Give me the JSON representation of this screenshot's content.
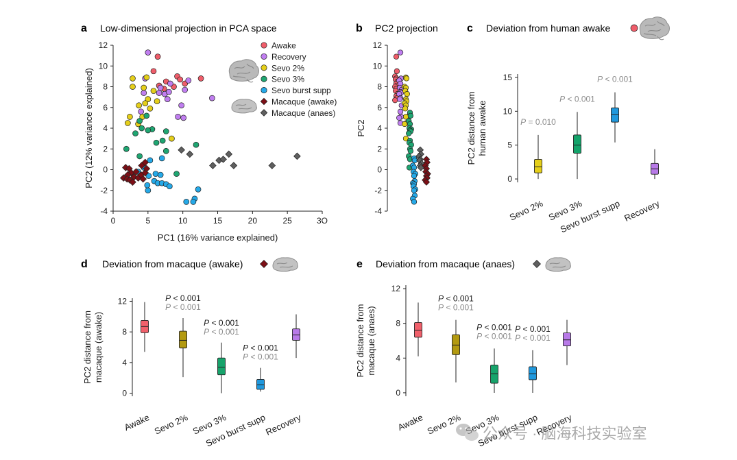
{
  "colors": {
    "awake": "#ef5d6a",
    "recovery": "#c07ef0",
    "sevo2": "#e5cf1a",
    "sevo3": "#1fa672",
    "burst": "#25a9e8",
    "mac_awake": "#7d0f16",
    "mac_anaes": "#5f5f5f",
    "p_gray": "#8a8a8a",
    "box_awake_d": "#f0606b",
    "box_sevo2_d": "#b39a10",
    "box_sevo3_d": "#17a36b",
    "box_burst_d": "#1f98dd",
    "box_recovery_d": "#b87ae8",
    "box_sevo2_c": "#e5cf1a",
    "box_sevo3_c": "#14a36a",
    "box_burst_c": "#1f98dd",
    "box_recovery_c": "#b87ae8"
  },
  "icons": {
    "human_brain": "human-brain-icon",
    "macaque_brain": "macaque-brain-icon"
  },
  "watermark": "公众号 · 脑海科技实验室",
  "chart_data": [
    {
      "panel": "a",
      "type": "scatter",
      "title": "Low-dimensional projection in PCA space",
      "xlabel": "PC1 (16% variance explained)",
      "ylabel": "PC2 (12% variance explained)",
      "xlim": [
        0,
        30
      ],
      "ylim": [
        -4,
        12
      ],
      "xticks": [
        "0",
        "5",
        "10",
        "15",
        "20",
        "25",
        "3O"
      ],
      "yticks": [
        "-4",
        "-2",
        "0",
        "2",
        "4",
        "6",
        "8",
        "10",
        "12"
      ],
      "legend": [
        {
          "label": "Awake",
          "color_key": "awake",
          "shape": "circle"
        },
        {
          "label": "Recovery",
          "color_key": "recovery",
          "shape": "circle"
        },
        {
          "label": "Sevo 2%",
          "color_key": "sevo2",
          "shape": "circle"
        },
        {
          "label": "Sevo 3%",
          "color_key": "sevo3",
          "shape": "circle"
        },
        {
          "label": "Sevo burst supp",
          "color_key": "burst",
          "shape": "circle"
        },
        {
          "label": "Macaque (awake)",
          "color_key": "mac_awake",
          "shape": "diamond"
        },
        {
          "label": "Macaque (anaes)",
          "color_key": "mac_anaes",
          "shape": "diamond"
        }
      ],
      "series": [
        {
          "name": "Awake",
          "color_key": "awake",
          "shape": "circle",
          "points": [
            [
              6.4,
              10.9
            ],
            [
              5.8,
              9.5
            ],
            [
              9.2,
              9.0
            ],
            [
              9.6,
              8.7
            ],
            [
              12.6,
              8.8
            ],
            [
              7.6,
              8.5
            ],
            [
              6.6,
              8.1
            ],
            [
              8.7,
              8.0
            ],
            [
              10.3,
              8.3
            ],
            [
              7.3,
              7.8
            ]
          ]
        },
        {
          "name": "Recovery",
          "color_key": "recovery",
          "shape": "circle",
          "points": [
            [
              5.0,
              11.3
            ],
            [
              4.6,
              8.8
            ],
            [
              8.2,
              8.3
            ],
            [
              6.8,
              7.9
            ],
            [
              10.8,
              8.6
            ],
            [
              10.3,
              7.7
            ],
            [
              6.6,
              7.4
            ],
            [
              7.4,
              7.3
            ],
            [
              8.0,
              7.5
            ],
            [
              7.8,
              6.8
            ],
            [
              4.4,
              7.4
            ],
            [
              14.2,
              6.9
            ],
            [
              9.8,
              6.2
            ],
            [
              4.0,
              5.6
            ],
            [
              9.3,
              5.1
            ],
            [
              10.1,
              5.0
            ]
          ]
        },
        {
          "name": "Sevo 2%",
          "color_key": "sevo2",
          "shape": "circle",
          "points": [
            [
              2.8,
              8.8
            ],
            [
              4.8,
              8.9
            ],
            [
              2.8,
              8.0
            ],
            [
              4.4,
              7.9
            ],
            [
              5.8,
              7.6
            ],
            [
              5.0,
              6.8
            ],
            [
              4.6,
              6.4
            ],
            [
              6.3,
              6.6
            ],
            [
              3.7,
              6.2
            ],
            [
              5.3,
              5.9
            ],
            [
              4.2,
              5.1
            ],
            [
              2.4,
              5.1
            ],
            [
              2.1,
              4.5
            ],
            [
              3.6,
              4.4
            ],
            [
              8.4,
              3.0
            ]
          ]
        },
        {
          "name": "Sevo 3%",
          "color_key": "sevo3",
          "shape": "circle",
          "points": [
            [
              4.8,
              5.2
            ],
            [
              3.8,
              4.7
            ],
            [
              4.1,
              4.0
            ],
            [
              5.6,
              3.9
            ],
            [
              5.0,
              3.8
            ],
            [
              7.6,
              3.7
            ],
            [
              3.2,
              3.5
            ],
            [
              7.1,
              2.8
            ],
            [
              6.2,
              2.6
            ],
            [
              11.9,
              2.4
            ],
            [
              1.9,
              2.0
            ],
            [
              7.6,
              1.8
            ],
            [
              3.8,
              1.3
            ],
            [
              9.1,
              -0.4
            ]
          ]
        },
        {
          "name": "Sevo burst supp",
          "color_key": "burst",
          "shape": "circle",
          "points": [
            [
              7.0,
              1.1
            ],
            [
              5.3,
              0.9
            ],
            [
              4.4,
              0.2
            ],
            [
              3.6,
              -0.2
            ],
            [
              5.1,
              -0.6
            ],
            [
              6.1,
              -0.4
            ],
            [
              6.8,
              -0.5
            ],
            [
              5.9,
              -1.1
            ],
            [
              6.4,
              -1.3
            ],
            [
              7.0,
              -1.3
            ],
            [
              7.6,
              -1.4
            ],
            [
              8.1,
              -1.6
            ],
            [
              12.2,
              -1.9
            ],
            [
              5.0,
              -2.0
            ],
            [
              11.7,
              -2.8
            ],
            [
              11.5,
              -3.1
            ],
            [
              10.5,
              -3.1
            ],
            [
              4.9,
              -1.5
            ]
          ]
        },
        {
          "name": "Macaque (awake)",
          "color_key": "mac_awake",
          "shape": "diamond",
          "points": [
            [
              1.8,
              0.2
            ],
            [
              2.3,
              0.1
            ],
            [
              2.6,
              -0.3
            ],
            [
              2.1,
              -0.5
            ],
            [
              1.5,
              -0.8
            ],
            [
              2.0,
              -0.9
            ],
            [
              2.4,
              -1.0
            ],
            [
              3.0,
              -0.7
            ],
            [
              3.6,
              -0.8
            ],
            [
              4.0,
              -0.5
            ],
            [
              4.3,
              -0.9
            ],
            [
              4.6,
              -0.3
            ],
            [
              4.8,
              0.1
            ],
            [
              2.8,
              -1.2
            ],
            [
              3.3,
              -0.2
            ],
            [
              4.1,
              0.4
            ],
            [
              4.6,
              0.7
            ]
          ]
        },
        {
          "name": "Macaque (anaes)",
          "color_key": "mac_anaes",
          "shape": "diamond",
          "points": [
            [
              9.8,
              1.9
            ],
            [
              11.0,
              1.5
            ],
            [
              14.3,
              0.4
            ],
            [
              15.2,
              0.9
            ],
            [
              15.8,
              1.0
            ],
            [
              16.6,
              1.5
            ],
            [
              17.3,
              0.4
            ],
            [
              22.8,
              0.4
            ],
            [
              26.4,
              1.3
            ]
          ]
        }
      ]
    },
    {
      "panel": "b",
      "type": "strip",
      "title": "PC2 projection",
      "ylabel": "PC2",
      "ylim": [
        -4,
        12
      ],
      "yticks": [
        "-4",
        "-2",
        "0",
        "2",
        "4",
        "6",
        "8",
        "10",
        "12"
      ],
      "series": [
        {
          "name": "Awake",
          "color_key": "awake",
          "shape": "circle",
          "column": 0,
          "values": [
            10.9,
            9.5,
            9.0,
            8.8,
            8.7,
            8.5,
            8.3,
            8.1,
            8.0,
            7.8,
            7.6,
            7.3,
            7.1,
            6.9,
            6.7
          ]
        },
        {
          "name": "Recovery",
          "color_key": "recovery",
          "shape": "circle",
          "column": 1,
          "values": [
            11.3,
            8.8,
            8.6,
            8.3,
            7.9,
            7.7,
            7.5,
            7.4,
            7.3,
            6.9,
            6.8,
            6.2,
            5.6,
            5.1,
            5.0,
            4.5
          ]
        },
        {
          "name": "Sevo 2%",
          "color_key": "sevo2",
          "shape": "circle",
          "column": 2,
          "values": [
            8.9,
            8.8,
            8.0,
            7.9,
            7.6,
            7.3,
            6.8,
            6.6,
            6.4,
            6.2,
            5.9,
            5.1,
            5.1,
            4.5,
            4.4,
            3.0
          ]
        },
        {
          "name": "Sevo 3%",
          "color_key": "sevo3",
          "shape": "circle",
          "column": 3,
          "values": [
            5.5,
            5.2,
            4.7,
            4.4,
            4.0,
            3.9,
            3.8,
            3.7,
            3.5,
            2.8,
            2.6,
            2.4,
            2.0,
            1.8,
            1.3,
            1.0,
            0.2
          ]
        },
        {
          "name": "Sevo burst supp",
          "color_key": "burst",
          "shape": "circle",
          "column": 4,
          "values": [
            1.1,
            0.9,
            0.4,
            0.2,
            -0.2,
            -0.4,
            -0.6,
            -1.1,
            -1.3,
            -1.4,
            -1.6,
            -1.9,
            -2.0,
            -2.5,
            -2.8,
            -3.1
          ]
        },
        {
          "name": "Macaque (anaes)",
          "color_key": "mac_anaes",
          "shape": "diamond",
          "column": 5,
          "values": [
            1.9,
            1.5,
            1.3,
            1.0,
            0.9,
            0.6,
            0.4,
            0.2
          ]
        },
        {
          "name": "Macaque (awake)",
          "color_key": "mac_awake",
          "shape": "diamond",
          "column": 6,
          "values": [
            1.0,
            0.7,
            0.4,
            0.1,
            -0.2,
            -0.4,
            -0.6,
            -0.8,
            -1.0,
            -1.2
          ]
        }
      ]
    },
    {
      "panel": "c",
      "type": "box",
      "title": "Deviation from human awake",
      "title_marker": {
        "shape": "circle",
        "color_key": "awake"
      },
      "ylabel": [
        "PC2 distance from",
        "human awake"
      ],
      "ylim": [
        -0.5,
        15.5
      ],
      "yticks": [
        0,
        5,
        10,
        15
      ],
      "categories": [
        "Sevo 2%",
        "Sevo 3%",
        "Sevo burst supp",
        "Recovery"
      ],
      "boxes": [
        {
          "color_key": "box_sevo2_c",
          "min": 0.0,
          "q1": 0.9,
          "median": 1.8,
          "q3": 2.9,
          "max": 6.5
        },
        {
          "color_key": "box_sevo3_c",
          "min": 0.0,
          "q1": 3.8,
          "median": 5.0,
          "q3": 6.5,
          "max": 9.9
        },
        {
          "color_key": "box_burst_c",
          "min": 5.4,
          "q1": 8.4,
          "median": 9.5,
          "q3": 10.5,
          "max": 12.8
        },
        {
          "color_key": "box_recovery_c",
          "min": 0.0,
          "q1": 0.7,
          "median": 1.5,
          "q3": 2.3,
          "max": 4.4
        }
      ],
      "annotations": [
        {
          "box": 0,
          "lines": [
            {
              "p": "P",
              "text": " = 0.010",
              "tone": "gray"
            }
          ]
        },
        {
          "box": 1,
          "lines": [
            {
              "p": "P",
              "text": " < 0.001",
              "tone": "gray"
            }
          ]
        },
        {
          "box": 2,
          "lines": [
            {
              "p": "P",
              "text": " < 0.001",
              "tone": "gray"
            }
          ]
        }
      ]
    },
    {
      "panel": "d",
      "type": "box",
      "title": "Deviation from macaque (awake)",
      "title_marker": {
        "shape": "diamond",
        "color_key": "mac_awake"
      },
      "ylabel": [
        "PC2 distance from",
        "macaque (awake)"
      ],
      "ylim": [
        -0.4,
        12.4
      ],
      "yticks": [
        0,
        4,
        8,
        12
      ],
      "categories": [
        "Awake",
        "Sevo 2%",
        "Sevo 3%",
        "Sevo burst supp",
        "Recovery"
      ],
      "boxes": [
        {
          "color_key": "box_awake_d",
          "min": 5.4,
          "q1": 7.9,
          "median": 8.7,
          "q3": 9.5,
          "max": 11.9
        },
        {
          "color_key": "box_sevo2_d",
          "min": 2.1,
          "q1": 5.9,
          "median": 6.9,
          "q3": 8.1,
          "max": 9.8
        },
        {
          "color_key": "box_sevo3_d",
          "min": 0.0,
          "q1": 2.4,
          "median": 3.4,
          "q3": 4.6,
          "max": 6.6
        },
        {
          "color_key": "box_burst_d",
          "min": 0.2,
          "q1": 0.5,
          "median": 1.1,
          "q3": 1.8,
          "max": 3.3
        },
        {
          "color_key": "box_recovery_d",
          "min": 4.6,
          "q1": 6.9,
          "median": 7.6,
          "q3": 8.4,
          "max": 10.3
        }
      ],
      "annotations": [
        {
          "box": 1,
          "lines": [
            {
              "p": "P",
              "text": " < 0.001",
              "tone": "dark"
            },
            {
              "p": "P",
              "text": " < 0.001",
              "tone": "gray"
            }
          ]
        },
        {
          "box": 2,
          "lines": [
            {
              "p": "P",
              "text": " < 0.001",
              "tone": "dark"
            },
            {
              "p": "P",
              "text": " < 0.001",
              "tone": "gray"
            }
          ]
        },
        {
          "box": 3,
          "lines": [
            {
              "p": "P",
              "text": " < 0.001",
              "tone": "dark"
            },
            {
              "p": "P",
              "text": " < 0.001",
              "tone": "gray"
            }
          ]
        }
      ]
    },
    {
      "panel": "e",
      "type": "box",
      "title": "Deviation from macaque (anaes)",
      "title_marker": {
        "shape": "diamond",
        "color_key": "mac_anaes"
      },
      "ylabel": [
        "PC2 distance from",
        "macaque (anaes)"
      ],
      "ylim": [
        -0.4,
        12.4
      ],
      "yticks": [
        0,
        4,
        8,
        12
      ],
      "categories": [
        "Awake",
        "Sevo 2%",
        "Sevo 3%",
        "Sevo burst supp",
        "Recovery"
      ],
      "boxes": [
        {
          "color_key": "box_awake_d",
          "min": 4.2,
          "q1": 6.4,
          "median": 7.2,
          "q3": 8.1,
          "max": 10.4
        },
        {
          "color_key": "box_sevo2_d",
          "min": 1.2,
          "q1": 4.4,
          "median": 5.5,
          "q3": 6.7,
          "max": 8.4
        },
        {
          "color_key": "box_sevo3_d",
          "min": 0.0,
          "q1": 1.1,
          "median": 2.2,
          "q3": 3.2,
          "max": 5.1
        },
        {
          "color_key": "box_burst_d",
          "min": 0.0,
          "q1": 1.5,
          "median": 2.2,
          "q3": 3.0,
          "max": 4.9
        },
        {
          "color_key": "box_recovery_d",
          "min": 3.2,
          "q1": 5.4,
          "median": 6.1,
          "q3": 6.9,
          "max": 8.4
        }
      ],
      "annotations": [
        {
          "box": 1,
          "lines": [
            {
              "p": "P",
              "text": " < 0.001",
              "tone": "dark"
            },
            {
              "p": "P",
              "text": " < 0.001",
              "tone": "gray"
            }
          ]
        },
        {
          "box": 2,
          "lines": [
            {
              "p": "P",
              "text": " < 0.001",
              "tone": "dark"
            },
            {
              "p": "P",
              "text": " < 0.001",
              "tone": "gray"
            }
          ]
        },
        {
          "box": 3,
          "lines": [
            {
              "p": "P",
              "text": " < 0.001",
              "tone": "dark"
            },
            {
              "p": "P",
              "text": " < 0.001",
              "tone": "gray"
            }
          ]
        }
      ]
    }
  ]
}
